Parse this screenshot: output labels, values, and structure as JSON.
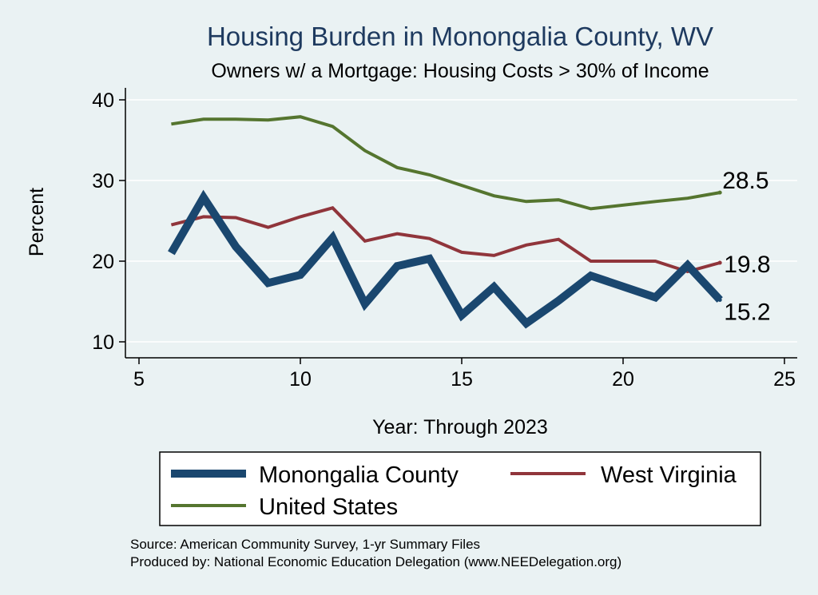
{
  "chart_data": {
    "type": "line",
    "title": "Housing Burden in Monongalia County, WV",
    "subtitle": "Owners w/ a Mortgage: Housing Costs > 30% of Income",
    "xlabel": "Year: Through 2023",
    "ylabel": "Percent",
    "xlim": [
      5,
      25
    ],
    "ylim": [
      10,
      40
    ],
    "xticks": [
      "5",
      "10",
      "15",
      "20",
      "25"
    ],
    "yticks": [
      "10",
      "20",
      "30",
      "40"
    ],
    "grid": true,
    "legend_position": "bottom",
    "series": [
      {
        "name": "Monongalia County",
        "color": "#1a476f",
        "x": [
          6,
          7,
          8,
          9,
          10,
          11,
          12,
          13,
          14,
          15,
          16,
          17,
          18,
          19,
          21,
          22,
          23
        ],
        "values": [
          21.0,
          27.9,
          21.8,
          17.3,
          18.3,
          22.9,
          14.7,
          19.4,
          20.3,
          13.3,
          16.8,
          12.3,
          15.1,
          18.2,
          15.5,
          19.5,
          15.2
        ],
        "end_label": "15.2"
      },
      {
        "name": "West Virginia",
        "color": "#90353b",
        "x": [
          6,
          7,
          8,
          9,
          10,
          11,
          12,
          13,
          14,
          15,
          16,
          17,
          18,
          19,
          21,
          22,
          23
        ],
        "values": [
          24.5,
          25.5,
          25.4,
          24.2,
          25.5,
          26.6,
          22.5,
          23.4,
          22.8,
          21.1,
          20.7,
          22.0,
          22.7,
          20.0,
          20.0,
          18.7,
          19.8
        ],
        "end_label": "19.8"
      },
      {
        "name": "United States",
        "color": "#55752f",
        "x": [
          6,
          7,
          8,
          9,
          10,
          11,
          12,
          13,
          14,
          15,
          16,
          17,
          18,
          19,
          21,
          22,
          23
        ],
        "values": [
          37.0,
          37.6,
          37.6,
          37.5,
          37.9,
          36.7,
          33.7,
          31.6,
          30.7,
          29.4,
          28.1,
          27.4,
          27.6,
          26.5,
          27.4,
          27.8,
          28.5
        ],
        "end_label": "28.5"
      }
    ],
    "notes": [
      "Source: American Community Survey, 1-yr Summary Files",
      "Produced by: National Economic Education Delegation (www.NEEDelegation.org)"
    ]
  }
}
